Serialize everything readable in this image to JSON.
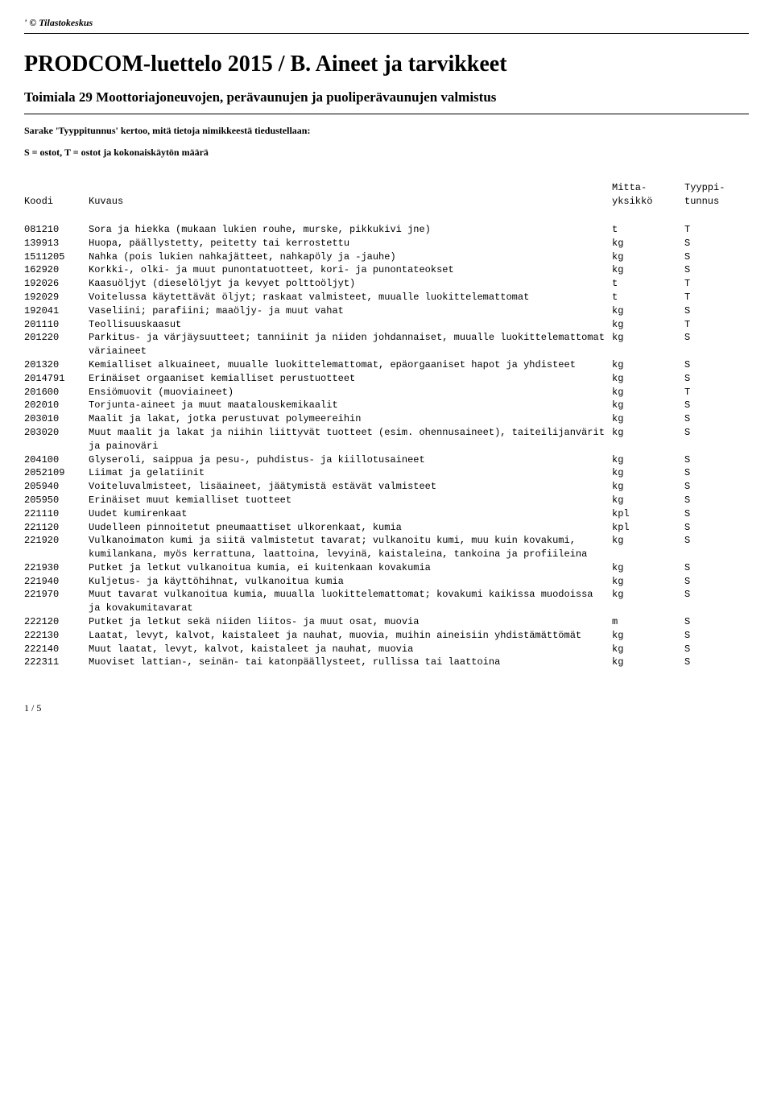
{
  "top_note": "' © Tilastokeskus",
  "title": "PRODCOM-luettelo 2015 / B. Aineet ja tarvikkeet",
  "subtitle": "Toimiala 29 Moottoriajoneuvojen, perävaunujen ja puoliperävaunujen valmistus",
  "note_line": "Sarake 'Tyyppitunnus' kertoo, mitä tietoja nimikkeestä tiedustellaan:",
  "legend_line": "S = ostot, T = ostot ja kokonaiskäytön määrä",
  "headers": {
    "code": "Koodi",
    "desc": "Kuvaus",
    "unit_l1": "Mitta-",
    "unit_l2": "yksikkö",
    "type_l1": "Tyyppi-",
    "type_l2": "tunnus"
  },
  "rows": [
    {
      "code": "081210",
      "desc": "Sora ja hiekka (mukaan lukien rouhe, murske, pikkukivi jne)",
      "unit": "t",
      "type": "T"
    },
    {
      "code": "139913",
      "desc": "Huopa, päällystetty, peitetty tai kerrostettu",
      "unit": "kg",
      "type": "S"
    },
    {
      "code": "1511205",
      "desc": "Nahka (pois lukien nahkajätteet, nahkapöly ja -jauhe)",
      "unit": "kg",
      "type": "S"
    },
    {
      "code": "162920",
      "desc": "Korkki-, olki- ja muut punontatuotteet, kori- ja punontateokset",
      "unit": "kg",
      "type": "S"
    },
    {
      "code": "192026",
      "desc": "Kaasuöljyt (dieselöljyt ja kevyet polttoöljyt)",
      "unit": "t",
      "type": "T"
    },
    {
      "code": "192029",
      "desc": "Voitelussa käytettävät öljyt; raskaat valmisteet, muualle luokittelemattomat",
      "unit": "t",
      "type": "T"
    },
    {
      "code": "192041",
      "desc": "Vaseliini; parafiini; maaöljy- ja muut vahat",
      "unit": "kg",
      "type": "S"
    },
    {
      "code": "201110",
      "desc": "Teollisuuskaasut",
      "unit": "kg",
      "type": "T"
    },
    {
      "code": "201220",
      "desc": "Parkitus- ja värjäysuutteet; tanniinit ja niiden johdannaiset, muualle luokittelemattomat väriaineet",
      "unit": "kg",
      "type": "S"
    },
    {
      "code": "201320",
      "desc": "Kemialliset alkuaineet, muualle luokittelemattomat, epäorgaaniset hapot ja yhdisteet",
      "unit": "kg",
      "type": "S"
    },
    {
      "code": "2014791",
      "desc": "Erinäiset orgaaniset kemialliset perustuotteet",
      "unit": "kg",
      "type": "S"
    },
    {
      "code": "201600",
      "desc": "Ensiömuovit (muoviaineet)",
      "unit": "kg",
      "type": "T"
    },
    {
      "code": "202010",
      "desc": "Torjunta-aineet ja muut maatalouskemikaalit",
      "unit": "kg",
      "type": "S"
    },
    {
      "code": "203010",
      "desc": "Maalit ja lakat, jotka perustuvat polymeereihin",
      "unit": "kg",
      "type": "S"
    },
    {
      "code": "203020",
      "desc": "Muut maalit ja lakat ja niihin liittyvät tuotteet (esim. ohennusaineet), taiteilijanvärit ja painoväri",
      "unit": "kg",
      "type": "S"
    },
    {
      "code": "204100",
      "desc": "Glyseroli, saippua ja pesu-, puhdistus- ja kiillotusaineet",
      "unit": "kg",
      "type": "S"
    },
    {
      "code": "2052109",
      "desc": "Liimat ja gelatiinit",
      "unit": "kg",
      "type": "S"
    },
    {
      "code": "205940",
      "desc": "Voiteluvalmisteet, lisäaineet, jäätymistä estävät valmisteet",
      "unit": "kg",
      "type": "S"
    },
    {
      "code": "205950",
      "desc": "Erinäiset muut kemialliset tuotteet",
      "unit": "kg",
      "type": "S"
    },
    {
      "code": "221110",
      "desc": "Uudet kumirenkaat",
      "unit": "kpl",
      "type": "S"
    },
    {
      "code": "221120",
      "desc": "Uudelleen pinnoitetut pneumaattiset ulkorenkaat, kumia",
      "unit": "kpl",
      "type": "S"
    },
    {
      "code": "221920",
      "desc": "Vulkanoimaton kumi ja siitä valmistetut tavarat; vulkanoitu kumi, muu kuin kovakumi, kumilankana, myös kerrattuna, laattoina, levyinä, kaistaleina, tankoina ja profiileina",
      "unit": "kg",
      "type": "S"
    },
    {
      "code": "221930",
      "desc": "Putket ja letkut vulkanoitua kumia, ei kuitenkaan kovakumia",
      "unit": "kg",
      "type": "S"
    },
    {
      "code": "221940",
      "desc": "Kuljetus- ja käyttöhihnat, vulkanoitua kumia",
      "unit": "kg",
      "type": "S"
    },
    {
      "code": "221970",
      "desc": "Muut tavarat vulkanoitua kumia, muualla luokittelemattomat; kovakumi kaikissa muodoissa ja kovakumitavarat",
      "unit": "kg",
      "type": "S"
    },
    {
      "code": "222120",
      "desc": "Putket ja letkut sekä niiden liitos- ja muut osat, muovia",
      "unit": "m",
      "type": "S"
    },
    {
      "code": "222130",
      "desc": "Laatat, levyt, kalvot, kaistaleet ja nauhat, muovia, muihin aineisiin yhdistämättömät",
      "unit": "kg",
      "type": "S"
    },
    {
      "code": "222140",
      "desc": "Muut laatat, levyt, kalvot, kaistaleet ja nauhat, muovia",
      "unit": "kg",
      "type": "S"
    },
    {
      "code": "222311",
      "desc": "Muoviset lattian-, seinän- tai katonpäällysteet, rullissa tai laattoina",
      "unit": "kg",
      "type": "S"
    }
  ],
  "pagenum": "1 / 5"
}
